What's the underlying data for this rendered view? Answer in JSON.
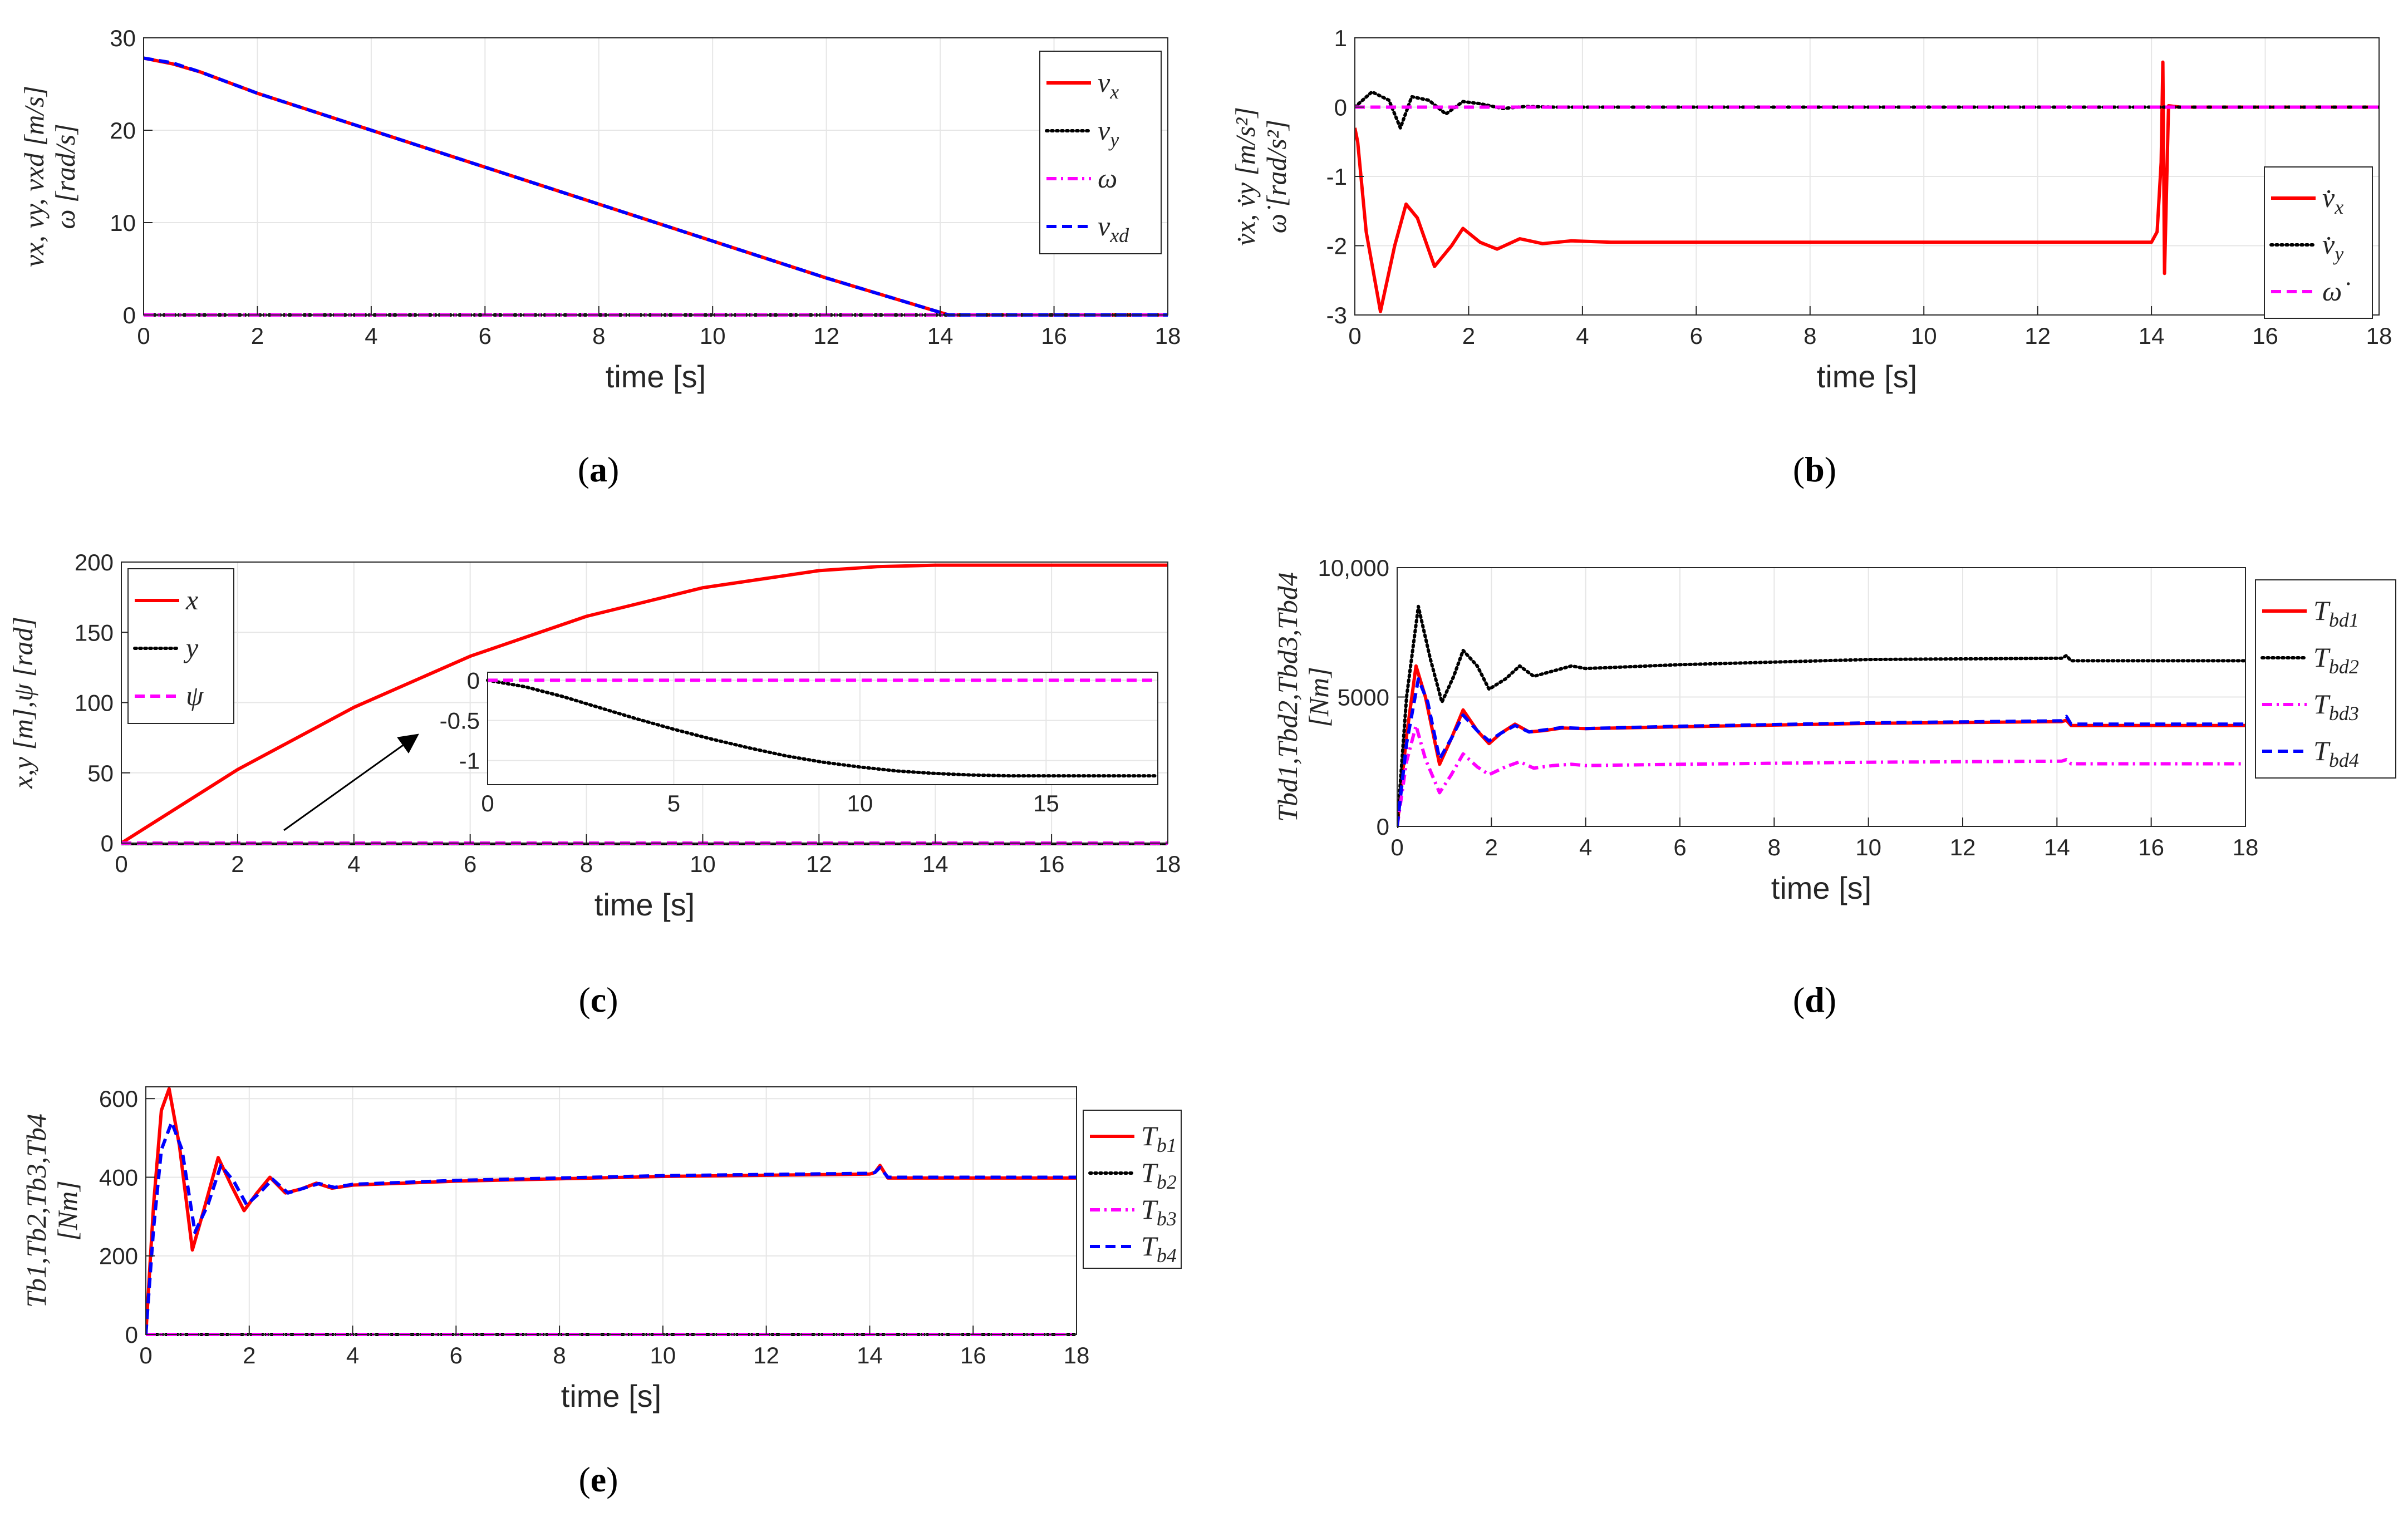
{
  "figure_panels": [
    "a",
    "b",
    "c",
    "d",
    "e"
  ],
  "chart_data": [
    {
      "id": "a",
      "type": "line",
      "caption_letter": "a",
      "xlabel": "time [s]",
      "ylabel_lines": [
        "vx, vy, vxd [m/s]",
        "ω [rad/s]"
      ],
      "xlim": [
        0,
        18
      ],
      "ylim": [
        0,
        30
      ],
      "xticks": [
        0,
        2,
        4,
        6,
        8,
        10,
        12,
        14,
        16,
        18
      ],
      "yticks": [
        0,
        10,
        20,
        30
      ],
      "grid": true,
      "legend_position": "top-right",
      "series": [
        {
          "name": "vx",
          "label": "v",
          "sub": "x",
          "color": "#ff0000",
          "dash": "solid",
          "x": [
            0,
            0.5,
            1,
            2,
            4,
            6,
            8,
            10,
            12,
            14.15,
            14.2,
            16,
            18
          ],
          "y": [
            27.8,
            27.2,
            26.3,
            24.0,
            20.0,
            16.0,
            12.0,
            8.0,
            4.0,
            0,
            0,
            0,
            0
          ]
        },
        {
          "name": "vy",
          "label": "v",
          "sub": "y",
          "color": "#000000",
          "dash": "dotted",
          "x": [
            0,
            18
          ],
          "y": [
            0,
            0
          ]
        },
        {
          "name": "omega",
          "label": "ω",
          "sub": "",
          "color": "#ff00ff",
          "dash": "dashdot",
          "x": [
            0,
            18
          ],
          "y": [
            0,
            0
          ]
        },
        {
          "name": "vxd",
          "label": "v",
          "sub": "xd",
          "color": "#0000ff",
          "dash": "dashed",
          "x": [
            0,
            0.5,
            1,
            2,
            4,
            6,
            8,
            10,
            12,
            14.15,
            14.2,
            16,
            18
          ],
          "y": [
            27.8,
            27.3,
            26.3,
            24.0,
            20.0,
            16.0,
            12.0,
            8.0,
            4.0,
            0,
            0,
            0,
            0
          ]
        }
      ]
    },
    {
      "id": "b",
      "type": "line",
      "caption_letter": "b",
      "xlabel": "time [s]",
      "ylabel_lines": [
        "v̇x, v̇y [m/s²]",
        "ω̇ [rad/s²]"
      ],
      "xlim": [
        0,
        18
      ],
      "ylim": [
        -3,
        1
      ],
      "xticks": [
        0,
        2,
        4,
        6,
        8,
        10,
        12,
        14,
        16,
        18
      ],
      "yticks": [
        -3,
        -2,
        -1,
        0,
        1
      ],
      "grid": true,
      "legend_position": "right",
      "series": [
        {
          "name": "vx_dot",
          "label": "v̇",
          "sub": "x",
          "color": "#ff0000",
          "dash": "solid",
          "x": [
            0,
            0.05,
            0.2,
            0.45,
            0.7,
            0.9,
            1.1,
            1.4,
            1.7,
            1.9,
            2.2,
            2.5,
            2.9,
            3.3,
            3.8,
            4.5,
            6,
            10,
            14.0,
            14.1,
            14.17,
            14.2,
            14.23,
            14.3,
            14.5,
            18
          ],
          "y": [
            -0.3,
            -0.5,
            -1.8,
            -2.95,
            -2.0,
            -1.4,
            -1.6,
            -2.3,
            -2.0,
            -1.75,
            -1.95,
            -2.05,
            -1.9,
            -1.97,
            -1.93,
            -1.95,
            -1.95,
            -1.95,
            -1.95,
            -1.8,
            -0.8,
            0.65,
            -2.4,
            0.02,
            0,
            0
          ]
        },
        {
          "name": "vy_dot",
          "label": "v̇",
          "sub": "y",
          "color": "#000000",
          "dash": "dotted",
          "x": [
            0,
            0.3,
            0.6,
            0.8,
            1.0,
            1.3,
            1.6,
            1.9,
            2.2,
            2.6,
            3.0,
            3.5,
            4.0,
            18
          ],
          "y": [
            0,
            0.22,
            0.1,
            -0.3,
            0.15,
            0.1,
            -0.1,
            0.08,
            0.05,
            -0.02,
            0.01,
            0,
            0,
            0
          ]
        },
        {
          "name": "omega_dot",
          "label": "ω̇",
          "sub": "",
          "color": "#ff00ff",
          "dash": "dashed",
          "x": [
            0,
            18
          ],
          "y": [
            0,
            0
          ]
        }
      ]
    },
    {
      "id": "c",
      "type": "line",
      "caption_letter": "c",
      "xlabel": "time [s]",
      "ylabel_lines": [
        "x,y [m],ψ [rad]"
      ],
      "xlim": [
        0,
        18
      ],
      "ylim": [
        0,
        200
      ],
      "xticks": [
        0,
        2,
        4,
        6,
        8,
        10,
        12,
        14,
        16,
        18
      ],
      "yticks": [
        0,
        50,
        100,
        150,
        200
      ],
      "grid": true,
      "legend_position": "top-left",
      "series": [
        {
          "name": "x",
          "label": "x",
          "sub": "",
          "color": "#ff0000",
          "dash": "solid",
          "x": [
            0,
            2,
            4,
            6,
            8,
            10,
            12,
            13,
            14,
            14.2,
            16,
            18
          ],
          "y": [
            0,
            52.3,
            96.6,
            133.0,
            161.4,
            181.7,
            193.9,
            196.7,
            197.8,
            197.8,
            197.8,
            197.8
          ]
        },
        {
          "name": "y",
          "label": "y",
          "sub": "",
          "color": "#000000",
          "dash": "dotted",
          "x": [
            0,
            18
          ],
          "y": [
            -1,
            -1
          ]
        },
        {
          "name": "psi",
          "label": "ψ",
          "sub": "",
          "color": "#ff00ff",
          "dash": "dashed",
          "x": [
            0,
            18
          ],
          "y": [
            0,
            0
          ]
        }
      ],
      "inset": {
        "xlim": [
          0,
          18
        ],
        "ylim": [
          -1.3,
          0.1
        ],
        "xticks": [
          0,
          5,
          10,
          15
        ],
        "yticks": [
          0,
          -0.5,
          -1
        ],
        "series": [
          {
            "name": "y_zoom",
            "color": "#000000",
            "dash": "dotted",
            "x": [
              0,
              1,
              2,
              3,
              4,
              5,
              6,
              7,
              8,
              9,
              10,
              11,
              12,
              13,
              14,
              15,
              16,
              17,
              18
            ],
            "y": [
              0,
              -0.08,
              -0.2,
              -0.34,
              -0.48,
              -0.61,
              -0.73,
              -0.84,
              -0.94,
              -1.02,
              -1.08,
              -1.13,
              -1.16,
              -1.18,
              -1.19,
              -1.19,
              -1.19,
              -1.19,
              -1.19
            ]
          },
          {
            "name": "psi_zoom",
            "color": "#ff00ff",
            "dash": "dashed",
            "x": [
              0,
              18
            ],
            "y": [
              0,
              0
            ]
          }
        ]
      }
    },
    {
      "id": "d",
      "type": "line",
      "caption_letter": "d",
      "xlabel": "time [s]",
      "ylabel_lines": [
        "Tbd1,Tbd2,Tbd3,Tbd4",
        "[Nm]"
      ],
      "xlim": [
        0,
        18
      ],
      "ylim": [
        0,
        10000
      ],
      "xticks": [
        0,
        2,
        4,
        6,
        8,
        10,
        12,
        14,
        16,
        18
      ],
      "yticks": [
        0,
        5000,
        10000
      ],
      "ytick_labels": [
        "0",
        "5000",
        "10,000"
      ],
      "grid": true,
      "legend_position": "outside-right",
      "series": [
        {
          "name": "Tbd1",
          "label": "T",
          "sub": "bd1",
          "color": "#ff0000",
          "dash": "solid",
          "x": [
            0,
            0.2,
            0.4,
            0.6,
            0.9,
            1.15,
            1.4,
            1.7,
            1.95,
            2.2,
            2.5,
            2.8,
            3.1,
            3.5,
            4,
            6,
            10,
            14.1,
            14.2,
            14.3,
            18
          ],
          "y": [
            0,
            3500,
            6200,
            5000,
            2400,
            3400,
            4500,
            3700,
            3200,
            3600,
            3950,
            3650,
            3700,
            3800,
            3780,
            3850,
            3980,
            4050,
            4100,
            3900,
            3900
          ]
        },
        {
          "name": "Tbd2",
          "label": "T",
          "sub": "bd2",
          "color": "#000000",
          "dash": "dotted",
          "x": [
            0,
            0.2,
            0.45,
            0.7,
            0.95,
            1.2,
            1.4,
            1.7,
            1.95,
            2.3,
            2.6,
            2.9,
            3.3,
            3.7,
            4,
            6,
            10,
            14.1,
            14.2,
            14.3,
            18
          ],
          "y": [
            0,
            5000,
            8500,
            6500,
            4800,
            5800,
            6800,
            6200,
            5300,
            5700,
            6200,
            5800,
            6000,
            6200,
            6100,
            6250,
            6450,
            6500,
            6600,
            6400,
            6400
          ]
        },
        {
          "name": "Tbd3",
          "label": "T",
          "sub": "bd3",
          "color": "#ff00ff",
          "dash": "dashdot",
          "x": [
            0,
            0.2,
            0.4,
            0.6,
            0.9,
            1.15,
            1.4,
            1.7,
            1.95,
            2.3,
            2.6,
            2.9,
            3.3,
            3.7,
            4,
            6,
            10,
            14.1,
            14.2,
            14.3,
            18
          ],
          "y": [
            0,
            2500,
            3900,
            2600,
            1300,
            2000,
            2800,
            2300,
            2000,
            2300,
            2500,
            2250,
            2350,
            2400,
            2350,
            2400,
            2480,
            2520,
            2580,
            2420,
            2420
          ]
        },
        {
          "name": "Tbd4",
          "label": "T",
          "sub": "bd4",
          "color": "#0000ff",
          "dash": "dashed",
          "x": [
            0,
            0.2,
            0.45,
            0.65,
            0.9,
            1.15,
            1.4,
            1.7,
            1.95,
            2.2,
            2.5,
            2.8,
            3.1,
            3.5,
            4,
            6,
            10,
            14.1,
            14.2,
            14.3,
            18
          ],
          "y": [
            0,
            3200,
            5700,
            4800,
            2600,
            3400,
            4300,
            3700,
            3300,
            3600,
            3900,
            3650,
            3720,
            3820,
            3780,
            3870,
            4000,
            4080,
            4250,
            3950,
            3950
          ]
        }
      ]
    },
    {
      "id": "e",
      "type": "line",
      "caption_letter": "e",
      "xlabel": "time [s]",
      "ylabel_lines": [
        "Tb1,Tb2,Tb3,Tb4",
        "[Nm]"
      ],
      "xlim": [
        0,
        18
      ],
      "ylim": [
        0,
        630
      ],
      "xticks": [
        0,
        2,
        4,
        6,
        8,
        10,
        12,
        14,
        16,
        18
      ],
      "yticks": [
        0,
        200,
        400,
        600
      ],
      "grid": true,
      "legend_position": "outside-right",
      "series": [
        {
          "name": "Tb1",
          "label": "T",
          "sub": "b1",
          "color": "#ff0000",
          "dash": "solid",
          "x": [
            0,
            0.15,
            0.3,
            0.45,
            0.65,
            0.9,
            1.15,
            1.4,
            1.65,
            1.9,
            2.15,
            2.4,
            2.7,
            3.0,
            3.3,
            3.6,
            4,
            6,
            10,
            14.0,
            14.1,
            14.2,
            14.35,
            18
          ],
          "y": [
            0,
            330,
            570,
            625,
            480,
            215,
            330,
            450,
            380,
            315,
            360,
            400,
            360,
            370,
            385,
            372,
            380,
            390,
            402,
            408,
            412,
            430,
            398,
            398
          ]
        },
        {
          "name": "Tb2",
          "label": "T",
          "sub": "b2",
          "color": "#000000",
          "dash": "dotted",
          "x": [
            0,
            18
          ],
          "y": [
            0,
            0
          ]
        },
        {
          "name": "Tb3",
          "label": "T",
          "sub": "b3",
          "color": "#ff00ff",
          "dash": "dashdot",
          "x": [
            0,
            18
          ],
          "y": [
            0,
            0
          ]
        },
        {
          "name": "Tb4",
          "label": "T",
          "sub": "b4",
          "color": "#0000ff",
          "dash": "dashed",
          "x": [
            0,
            0.15,
            0.3,
            0.5,
            0.7,
            0.95,
            1.2,
            1.45,
            1.7,
            1.95,
            2.2,
            2.45,
            2.75,
            3.05,
            3.35,
            3.65,
            4,
            6,
            10,
            14.0,
            14.1,
            14.2,
            14.35,
            18
          ],
          "y": [
            0,
            270,
            470,
            540,
            470,
            260,
            330,
            430,
            390,
            330,
            360,
            395,
            360,
            372,
            384,
            374,
            382,
            392,
            404,
            410,
            412,
            425,
            400,
            400
          ]
        }
      ]
    }
  ]
}
